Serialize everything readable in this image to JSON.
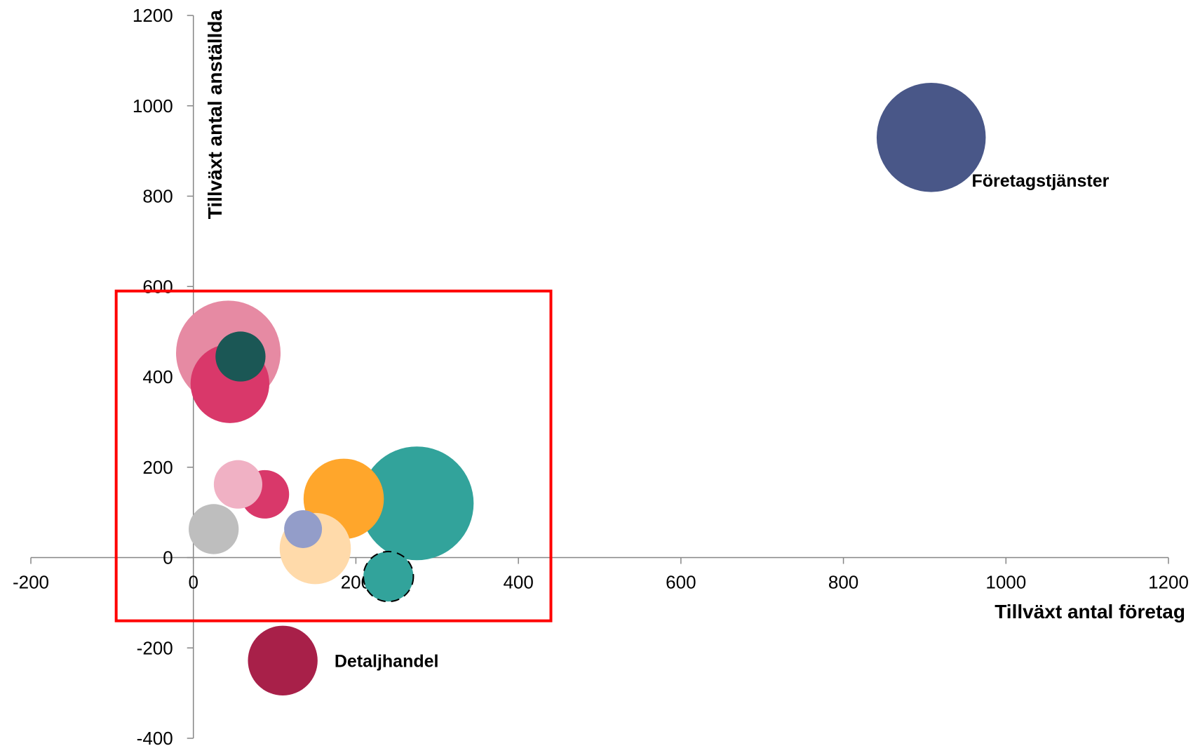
{
  "chart_data": {
    "type": "bubble",
    "title": "",
    "xlabel": "Tillväxt antal företag",
    "ylabel": "Tillväxt antal anställda",
    "xlim": [
      -200,
      1200
    ],
    "ylim": [
      -400,
      1200
    ],
    "x_ticks": [
      -200,
      0,
      200,
      400,
      600,
      800,
      1000,
      1200
    ],
    "y_ticks": [
      -400,
      -200,
      0,
      200,
      400,
      600,
      800,
      1000,
      1200
    ],
    "x_tick_labels": [
      "-200",
      "0",
      "200",
      "400",
      "600",
      "800",
      "1000",
      "1200"
    ],
    "y_tick_labels": [
      "-400",
      "-200",
      "0",
      "200",
      "400",
      "600",
      "800",
      "1000",
      "1200"
    ],
    "grid": false,
    "legend": "none",
    "highlight_box": {
      "x_range": [
        -95,
        440
      ],
      "y_range": [
        -140,
        590
      ],
      "color": "#ff0000"
    },
    "bubbles": [
      {
        "x": 908,
        "y": 930,
        "size": 72,
        "color": "#495788",
        "label": "Företagstjänster"
      },
      {
        "x": 275,
        "y": 120,
        "size": 75,
        "color": "#32a39b",
        "label": ""
      },
      {
        "x": 43,
        "y": 453,
        "size": 69,
        "color": "#e68aa3",
        "label": ""
      },
      {
        "x": 45,
        "y": 385,
        "size": 52,
        "color": "#d9386a",
        "label": ""
      },
      {
        "x": 58,
        "y": 445,
        "size": 33,
        "color": "#1b5755",
        "label": ""
      },
      {
        "x": 185,
        "y": 130,
        "size": 53,
        "color": "#ffa62b",
        "label": ""
      },
      {
        "x": 150,
        "y": 20,
        "size": 47,
        "color": "#ffdaaa",
        "label": ""
      },
      {
        "x": 88,
        "y": 140,
        "size": 32,
        "color": "#d9386a",
        "label": ""
      },
      {
        "x": 55,
        "y": 162,
        "size": 32,
        "color": "#f0b1c4",
        "label": ""
      },
      {
        "x": 25,
        "y": 63,
        "size": 33,
        "color": "#bebebe",
        "label": ""
      },
      {
        "x": 135,
        "y": 63,
        "size": 25,
        "color": "#939dc9",
        "label": ""
      },
      {
        "x": 240,
        "y": -42,
        "size": 33,
        "color": "#32a39b",
        "label": "",
        "dashed_outline": true
      },
      {
        "x": 110,
        "y": -228,
        "size": 46,
        "color": "#a82049",
        "label": "Detaljhandel"
      }
    ]
  }
}
